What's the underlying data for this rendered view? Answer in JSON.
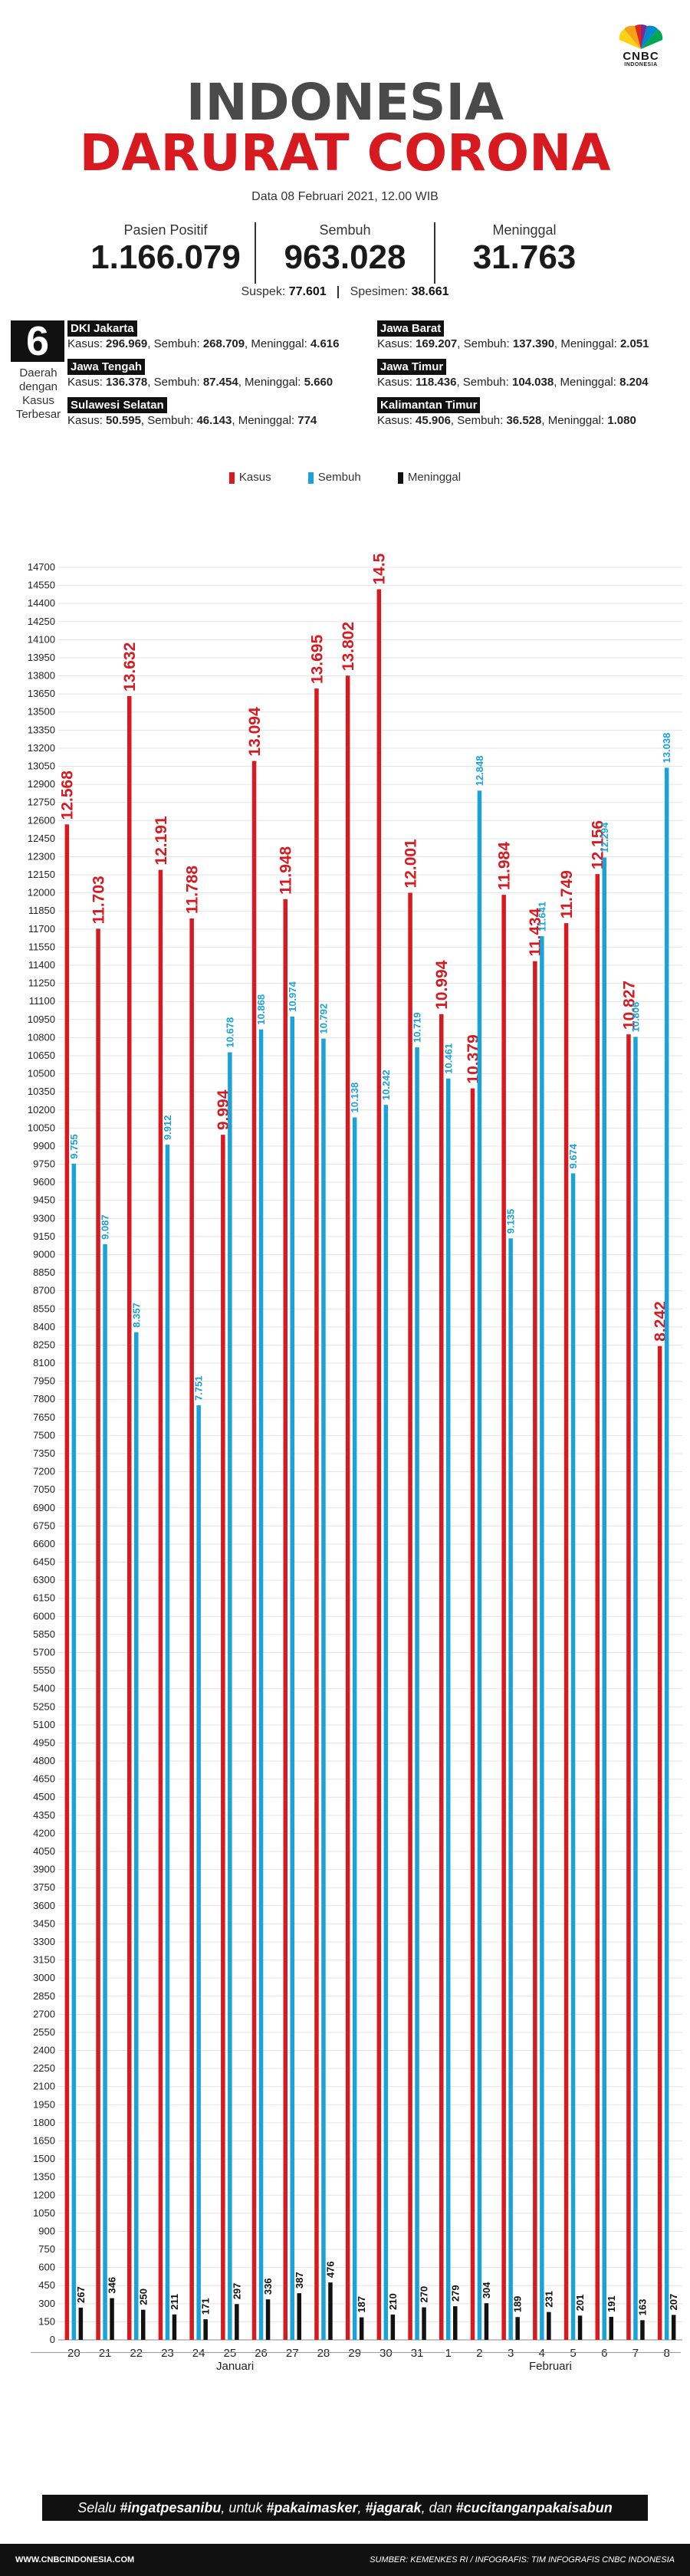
{
  "header": {
    "logo_text": "CNBC",
    "logo_sub": "INDONESIA",
    "title_line1": "INDONESIA",
    "title_line2": "DARURAT CORONA",
    "dateline": "Data 08 Februari 2021, 12.00 WIB"
  },
  "stats": [
    {
      "label": "Pasien Positif",
      "value": "1.166.079"
    },
    {
      "label": "Sembuh",
      "value": "963.028"
    },
    {
      "label": "Meninggal",
      "value": "31.763"
    }
  ],
  "suspek": {
    "label": "Suspek",
    "value": "77.601",
    "spes_label": "Spesimen",
    "spes_value": "38.661"
  },
  "regions_box": {
    "number": "6",
    "label": "Daerah dengan Kasus Terbesar"
  },
  "regions": [
    {
      "name": "DKI Jakarta",
      "kasus": "296.969",
      "sembuh": "268.709",
      "meninggal": "4.616"
    },
    {
      "name": "Jawa Barat",
      "kasus": "169.207",
      "sembuh": "137.390",
      "meninggal": "2.051"
    },
    {
      "name": "Jawa Tengah",
      "kasus": "136.378",
      "sembuh": "87.454",
      "meninggal": "5.660"
    },
    {
      "name": "Jawa Timur",
      "kasus": "118.436",
      "sembuh": "104.038",
      "meninggal": "8.204"
    },
    {
      "name": "Sulawesi Selatan",
      "kasus": "50.595",
      "sembuh": "46.143",
      "meninggal": "774"
    },
    {
      "name": "Kalimantan Timur",
      "kasus": "45.906",
      "sembuh": "36.528",
      "meninggal": "1.080"
    }
  ],
  "colors": {
    "kasus": "#d71920",
    "sembuh": "#1aa3d9",
    "meninggal": "#111111"
  },
  "chart_data": {
    "type": "bar",
    "categories": [
      "20",
      "21",
      "22",
      "23",
      "24",
      "25",
      "26",
      "27",
      "28",
      "29",
      "30",
      "31",
      "1",
      "2",
      "3",
      "4",
      "5",
      "6",
      "7",
      "8"
    ],
    "month_labels": [
      "Januari",
      "Februari"
    ],
    "legend": [
      "Kasus",
      "Sembuh",
      "Meninggal"
    ],
    "series": [
      {
        "name": "Kasus",
        "values": [
          12568,
          11703,
          13632,
          12191,
          11788,
          9994,
          13094,
          11948,
          13695,
          13802,
          14518,
          12001,
          10994,
          10379,
          11984,
          11434,
          11749,
          12156,
          10827,
          8242
        ]
      },
      {
        "name": "Sembuh",
        "values": [
          9755,
          9087,
          8357,
          9912,
          7751,
          10678,
          10868,
          10974,
          10792,
          10138,
          10242,
          10719,
          10461,
          12848,
          9135,
          11641,
          9674,
          12294,
          10806,
          13038
        ]
      },
      {
        "name": "Meninggal",
        "values": [
          267,
          346,
          250,
          211,
          171,
          297,
          336,
          387,
          476,
          187,
          210,
          270,
          279,
          304,
          189,
          231,
          201,
          191,
          163,
          207
        ]
      }
    ],
    "value_labels": {
      "Kasus": [
        "12.568",
        "11.703",
        "13.632",
        "12.191",
        "11.788",
        "9.994",
        "13.094",
        "11.948",
        "13.695",
        "13.802",
        "14.518",
        "12.001",
        "10.994",
        "10.379",
        "11.984",
        "11.434",
        "11.749",
        "12.156",
        "10.827",
        "8.242"
      ],
      "Sembuh": [
        "9.755",
        "9.087",
        "8.357",
        "9.912",
        "7.751",
        "10.678",
        "10.868",
        "10.974",
        "10.792",
        "10.138",
        "10.242",
        "10.719",
        "10.461",
        "12.848",
        "9.135",
        "11.641",
        "9.674",
        "12.294",
        "10.806",
        "13.038"
      ],
      "Meninggal": [
        "267",
        "346",
        "250",
        "211",
        "171",
        "297",
        "336",
        "387",
        "476",
        "187",
        "210",
        "270",
        "279",
        "304",
        "189",
        "231",
        "201",
        "191",
        "163",
        "207"
      ]
    },
    "ylim": [
      0,
      14700
    ],
    "ytick_step": 150,
    "grid": true,
    "legend_position": "top-center"
  },
  "banner": {
    "prefix": "Selalu ",
    "t1": "#ingatpesanibu",
    "mid1": ", untuk ",
    "t2": "#pakaimasker",
    "mid2": ", ",
    "t3": "#jagarak",
    "mid3": ", dan ",
    "t4": "#cucitanganpakaisabun"
  },
  "footer": {
    "left": "WWW.CNBCINDONESIA.COM",
    "right": "SUMBER: KEMENKES RI / INFOGRAFIS: TIM INFOGRAFIS CNBC INDONESIA"
  }
}
